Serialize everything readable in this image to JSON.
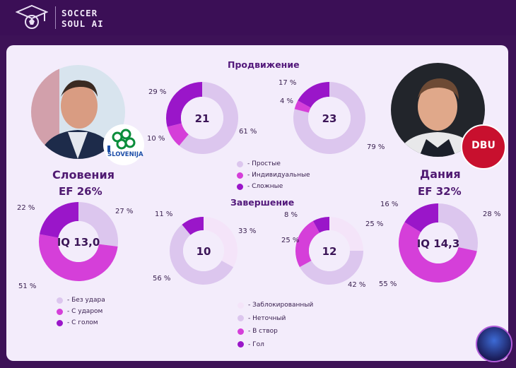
{
  "brand": {
    "line1": "SOCCER",
    "line2": "SOUL AI"
  },
  "sections": {
    "progress": "Продвижение",
    "finish": "Завершение"
  },
  "teams": {
    "left": {
      "name": "Словения",
      "ef": "EF  26%",
      "iq": "IQ 13,0",
      "badge_text": "SLOVENIJA"
    },
    "right": {
      "name": "Дания",
      "ef": "EF  32%",
      "iq": "IQ 14,3",
      "badge_text": "DBU"
    }
  },
  "legends": {
    "progress": [
      {
        "label": "- Простые",
        "color": "#dcc6ee"
      },
      {
        "label": "- Индивидуальные",
        "color": "#d53fd9"
      },
      {
        "label": "- Сложные",
        "color": "#9a16c9"
      }
    ],
    "shots": [
      {
        "label": "- Без удара",
        "color": "#dcc6ee"
      },
      {
        "label": "- С ударом",
        "color": "#d53fd9"
      },
      {
        "label": "- С голом",
        "color": "#9a16c9"
      }
    ],
    "finish": [
      {
        "label": "- Заблокированный",
        "color": "#f4e4f9"
      },
      {
        "label": "- Неточный",
        "color": "#dcc6ee"
      },
      {
        "label": "- В створ",
        "color": "#d53fd9"
      },
      {
        "label": "- Гол",
        "color": "#9a16c9"
      }
    ]
  },
  "chart_data": [
    {
      "type": "pie",
      "id": "left-iq",
      "center_label": "IQ 13,0",
      "categories": [
        "Без удара",
        "С ударом",
        "С голом"
      ],
      "values": [
        27,
        51,
        22
      ],
      "value_labels": [
        "27 %",
        "51 %",
        "22 %"
      ],
      "colors": [
        "#dcc6ee",
        "#d53fd9",
        "#9a16c9"
      ]
    },
    {
      "type": "pie",
      "id": "left-progress",
      "center_label": "21",
      "categories": [
        "Простые",
        "Индивидуальные",
        "Сложные"
      ],
      "values": [
        61,
        10,
        29
      ],
      "value_labels": [
        "61 %",
        "10 %",
        "29 %"
      ],
      "colors": [
        "#dcc6ee",
        "#d53fd9",
        "#9a16c9"
      ]
    },
    {
      "type": "pie",
      "id": "right-progress",
      "center_label": "23",
      "categories": [
        "Простые",
        "Индивидуальные",
        "Сложные"
      ],
      "values": [
        79,
        4,
        17
      ],
      "value_labels": [
        "79 %",
        "4 %",
        "17 %"
      ],
      "colors": [
        "#dcc6ee",
        "#d53fd9",
        "#9a16c9"
      ]
    },
    {
      "type": "pie",
      "id": "left-finish",
      "center_label": "10",
      "categories": [
        "Заблокированный",
        "Неточный",
        "В створ",
        "Гол"
      ],
      "values": [
        33,
        56,
        0,
        11
      ],
      "value_labels": [
        "33 %",
        "56 %",
        "",
        "11 %"
      ],
      "colors": [
        "#f4e4f9",
        "#dcc6ee",
        "#d53fd9",
        "#9a16c9"
      ]
    },
    {
      "type": "pie",
      "id": "right-finish",
      "center_label": "12",
      "categories": [
        "Заблокированный",
        "Неточный",
        "В створ",
        "Гол"
      ],
      "values": [
        25,
        42,
        25,
        8
      ],
      "value_labels": [
        "25 %",
        "42 %",
        "25 %",
        "8 %"
      ],
      "colors": [
        "#f4e4f9",
        "#dcc6ee",
        "#d53fd9",
        "#9a16c9"
      ]
    },
    {
      "type": "pie",
      "id": "right-iq",
      "center_label": "IQ 14,3",
      "categories": [
        "Без удара",
        "С ударом",
        "С голом"
      ],
      "values": [
        28,
        55,
        16
      ],
      "value_labels": [
        "28 %",
        "55 %",
        "16 %"
      ],
      "colors": [
        "#dcc6ee",
        "#d53fd9",
        "#9a16c9"
      ]
    }
  ]
}
